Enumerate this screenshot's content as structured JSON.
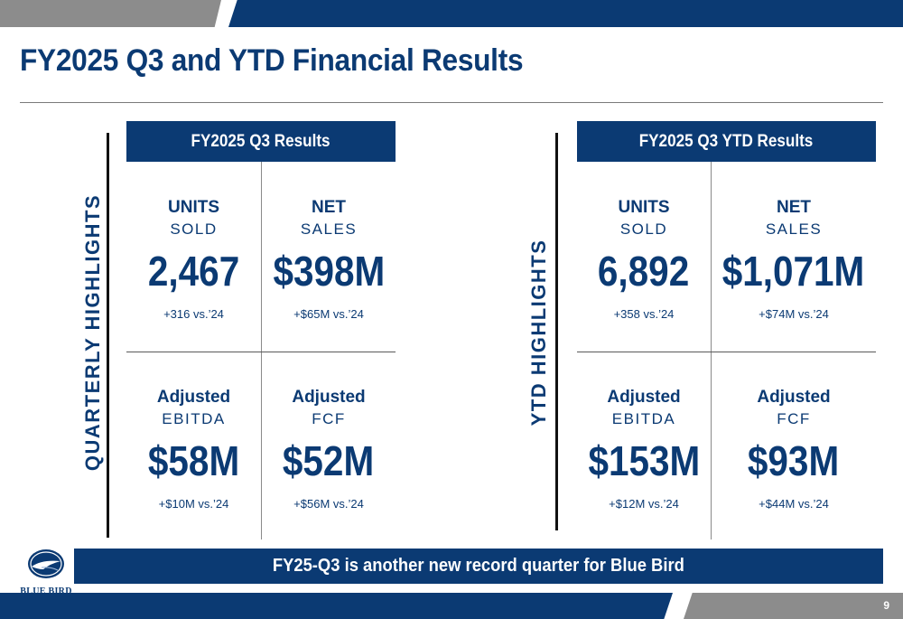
{
  "slide": {
    "title": "FY2025 Q3 and YTD Financial Results",
    "page_number": "9",
    "banner": "FY25-Q3 is another new record quarter for Blue Bird",
    "logo_text": "BLUE BIRD"
  },
  "quarterly": {
    "side_label": "QUARTERLY HIGHLIGHTS",
    "header": "FY2025 Q3 Results",
    "units": {
      "label_top": "UNITS",
      "label_bottom": "SOLD",
      "value": "2,467",
      "delta": "+316 vs.’24"
    },
    "net_sales": {
      "label_top": "NET",
      "label_bottom": "SALES",
      "value": "$398M",
      "delta": "+$65M vs.’24"
    },
    "ebitda": {
      "label_top": "Adjusted",
      "label_bottom": "EBITDA",
      "value": "$58M",
      "delta": "+$10M vs.’24"
    },
    "fcf": {
      "label_top": "Adjusted",
      "label_bottom": "FCF",
      "value": "$52M",
      "delta": "+$56M vs.’24"
    }
  },
  "ytd": {
    "side_label": "YTD HIGHLIGHTS",
    "header": "FY2025 Q3 YTD Results",
    "units": {
      "label_top": "UNITS",
      "label_bottom": "SOLD",
      "value": "6,892",
      "delta": "+358 vs.’24"
    },
    "net_sales": {
      "label_top": "NET",
      "label_bottom": "SALES",
      "value": "$1,071M",
      "delta": "+$74M vs.’24"
    },
    "ebitda": {
      "label_top": "Adjusted",
      "label_bottom": "EBITDA",
      "value": "$153M",
      "delta": "+$12M vs.’24"
    },
    "fcf": {
      "label_top": "Adjusted",
      "label_bottom": "FCF",
      "value": "$93M",
      "delta": "+$44M vs.’24"
    }
  },
  "colors": {
    "navy": "#0b3a73",
    "gray": "#8c8c8c"
  }
}
